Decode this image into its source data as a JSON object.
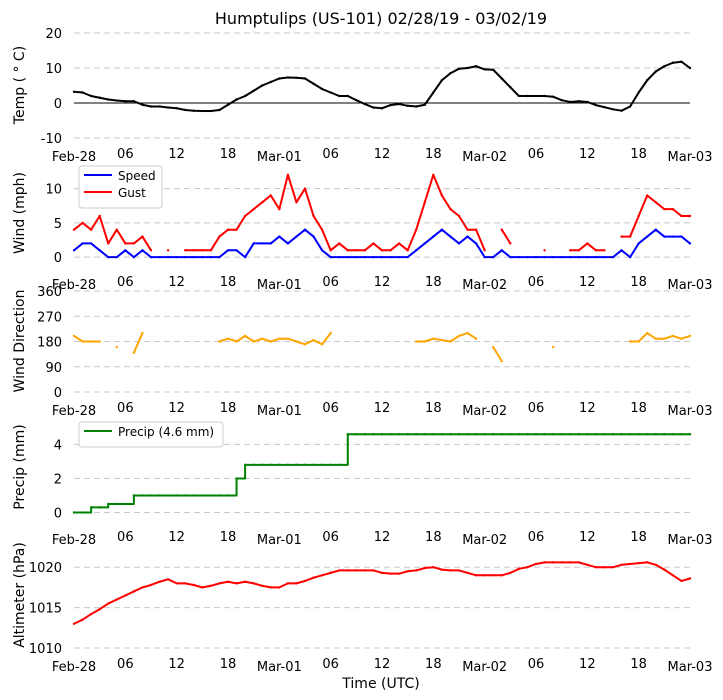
{
  "chart_data": [
    {
      "type": "line",
      "title": "Humptulips (US-101) 02/28/19 - 03/02/19",
      "ylabel": "Temp ($^\\circ$C)",
      "ylabel_display": "Temp ( ° C)",
      "ylim": [
        -10,
        20
      ],
      "yticks": [
        -10,
        0,
        10,
        20
      ],
      "zero_line": true,
      "grid": "horizontal dashed",
      "x_hours_from": "Feb-28 00 UTC",
      "xticklabels": [
        "Feb-28",
        "06",
        "12",
        "18",
        "Mar-01",
        "06",
        "12",
        "18",
        "Mar-02",
        "06",
        "12",
        "18",
        "Mar-03"
      ],
      "series": [
        {
          "color": "#000000",
          "values": [
            3.2,
            3,
            2,
            1.5,
            1,
            0.7,
            0.5,
            0.5,
            -0.5,
            -1,
            -1,
            -1.3,
            -1.5,
            -2,
            -2.2,
            -2.3,
            -2.3,
            -2,
            -0.5,
            1,
            2,
            3.5,
            5,
            6,
            7,
            7.3,
            7.2,
            7,
            5.5,
            4,
            3,
            2,
            2,
            0.8,
            -0.3,
            -1.3,
            -1.5,
            -0.6,
            -0.3,
            -0.8,
            -1,
            -0.5,
            3,
            6.5,
            8.5,
            9.8,
            10,
            10.5,
            9.6,
            9.5,
            7,
            4.5,
            2,
            2,
            2,
            2,
            1.8,
            0.8,
            0.3,
            0.5,
            0.3,
            -0.6,
            -1.2,
            -1.8,
            -2.2,
            -1,
            3,
            6.5,
            9,
            10.5,
            11.5,
            11.8,
            10
          ]
        }
      ]
    },
    {
      "type": "line",
      "ylabel": "Wind (mph)",
      "ylim": [
        -1,
        13
      ],
      "yticks": [
        0,
        5,
        10
      ],
      "grid": "horizontal dashed",
      "legend": "top-left",
      "xticklabels": [
        "Feb-28",
        "06",
        "12",
        "18",
        "Mar-01",
        "06",
        "12",
        "18",
        "Mar-02",
        "06",
        "12",
        "18",
        "Mar-03"
      ],
      "series": [
        {
          "name": "Speed",
          "color": "#0000ff",
          "values": [
            1,
            2,
            2,
            1,
            0,
            0,
            1,
            0,
            1,
            0,
            0,
            0,
            0,
            0,
            0,
            0,
            0,
            0,
            1,
            1,
            0,
            2,
            2,
            2,
            3,
            2,
            3,
            4,
            3,
            1,
            0,
            0,
            0,
            0,
            0,
            0,
            0,
            0,
            0,
            0,
            1,
            2,
            3,
            4,
            3,
            2,
            3,
            2,
            0,
            0,
            1,
            0,
            0,
            0,
            0,
            0,
            0,
            0,
            0,
            0,
            0,
            0,
            0,
            0,
            1,
            0,
            2,
            3,
            4,
            3,
            3,
            3,
            2
          ]
        },
        {
          "name": "Gust",
          "color": "#ff0000",
          "values": [
            4,
            5,
            4,
            6,
            2,
            4,
            2,
            2,
            3,
            1,
            null,
            1,
            null,
            1,
            1,
            1,
            1,
            3,
            4,
            4,
            6,
            7,
            8,
            9,
            7,
            12,
            8,
            10,
            6,
            4,
            1,
            2,
            1,
            1,
            1,
            2,
            1,
            1,
            2,
            1,
            4,
            8,
            12,
            9,
            7,
            6,
            4,
            4,
            1,
            null,
            4,
            2,
            null,
            null,
            null,
            1,
            null,
            null,
            1,
            1,
            2,
            1,
            1,
            null,
            3,
            3,
            6,
            9,
            8,
            7,
            7,
            6,
            6
          ]
        }
      ]
    },
    {
      "type": "line",
      "ylabel": "Wind Direction",
      "ylim": [
        0,
        360
      ],
      "yticks": [
        0,
        90,
        180,
        270,
        360
      ],
      "grid": "horizontal dashed",
      "xticklabels": [
        "Feb-28",
        "06",
        "12",
        "18",
        "Mar-01",
        "06",
        "12",
        "18",
        "Mar-02",
        "06",
        "12",
        "18",
        "Mar-03"
      ],
      "series": [
        {
          "color": "#ffa500",
          "values": [
            200,
            180,
            180,
            180,
            null,
            160,
            null,
            140,
            210,
            null,
            null,
            null,
            null,
            null,
            null,
            null,
            null,
            180,
            190,
            180,
            200,
            180,
            190,
            180,
            190,
            190,
            180,
            170,
            185,
            170,
            210,
            null,
            null,
            null,
            null,
            null,
            null,
            null,
            null,
            null,
            180,
            180,
            190,
            185,
            180,
            200,
            210,
            190,
            null,
            160,
            110,
            null,
            null,
            null,
            null,
            null,
            160,
            null,
            null,
            null,
            null,
            null,
            null,
            null,
            null,
            180,
            180,
            210,
            190,
            190,
            200,
            190,
            200
          ]
        }
      ]
    },
    {
      "type": "line",
      "ylabel": "Precip (mm)",
      "ylim": [
        -0.5,
        5.2
      ],
      "yticks": [
        0,
        2,
        4
      ],
      "grid": "horizontal dashed",
      "legend": "top-left",
      "xticklabels": [
        "Feb-28",
        "06",
        "12",
        "18",
        "Mar-01",
        "06",
        "12",
        "18",
        "Mar-02",
        "06",
        "12",
        "18",
        "Mar-03"
      ],
      "series": [
        {
          "name": "Precip (4.6 mm)",
          "color": "#008000",
          "step": true,
          "values": [
            0,
            0,
            0.3,
            0.3,
            0.5,
            0.5,
            0.5,
            1,
            1,
            1,
            1,
            1,
            1,
            1,
            1,
            1,
            1,
            1,
            1,
            2,
            2.8,
            2.8,
            2.8,
            2.8,
            2.8,
            2.8,
            2.8,
            2.8,
            2.8,
            2.8,
            2.8,
            2.8,
            4.6,
            4.6,
            4.6,
            4.6,
            4.6,
            4.6,
            4.6,
            4.6,
            4.6,
            4.6,
            4.6,
            4.6,
            4.6,
            4.6,
            4.6,
            4.6,
            4.6,
            4.6,
            4.6,
            4.6,
            4.6,
            4.6,
            4.6,
            4.6,
            4.6,
            4.6,
            4.6,
            4.6,
            4.6,
            4.6,
            4.6,
            4.6,
            4.6,
            4.6,
            4.6,
            4.6,
            4.6,
            4.6,
            4.6,
            4.6,
            4.6
          ]
        }
      ]
    },
    {
      "type": "line",
      "ylabel": "Altimeter (hPa)",
      "xlabel": "Time (UTC)",
      "ylim": [
        1010,
        1022.5
      ],
      "yticks": [
        1010,
        1015,
        1020
      ],
      "grid": "horizontal dashed",
      "xticklabels": [
        "Feb-28",
        "06",
        "12",
        "18",
        "Mar-01",
        "06",
        "12",
        "18",
        "Mar-02",
        "06",
        "12",
        "18",
        "Mar-03"
      ],
      "series": [
        {
          "color": "#ff0000",
          "values": [
            1013,
            1013.5,
            1014.2,
            1014.8,
            1015.5,
            1016,
            1016.5,
            1017,
            1017.5,
            1017.8,
            1018.2,
            1018.5,
            1018,
            1018,
            1017.8,
            1017.5,
            1017.7,
            1018,
            1018.2,
            1018,
            1018.2,
            1018,
            1017.7,
            1017.5,
            1017.5,
            1018,
            1018,
            1018.3,
            1018.7,
            1019,
            1019.3,
            1019.6,
            1019.6,
            1019.6,
            1019.6,
            1019.6,
            1019.3,
            1019.2,
            1019.2,
            1019.5,
            1019.6,
            1019.9,
            1020,
            1019.7,
            1019.6,
            1019.6,
            1019.3,
            1019,
            1019,
            1019,
            1019,
            1019.3,
            1019.8,
            1020,
            1020.4,
            1020.6,
            1020.6,
            1020.6,
            1020.6,
            1020.6,
            1020.3,
            1020,
            1020,
            1020,
            1020.3,
            1020.4,
            1020.5,
            1020.6,
            1020.3,
            1019.7,
            1019,
            1018.3,
            1018.6
          ]
        }
      ]
    }
  ]
}
